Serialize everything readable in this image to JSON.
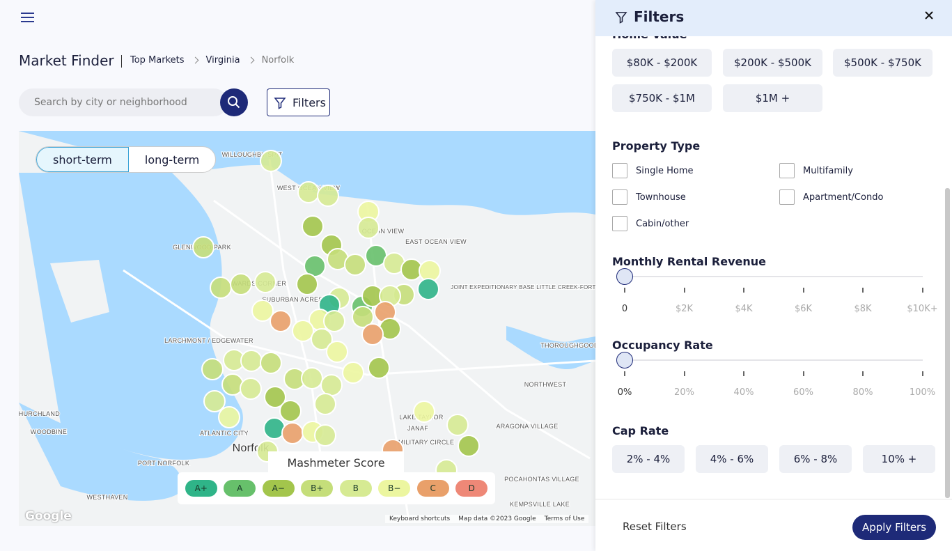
{
  "header": {
    "title": "Market Finder",
    "breadcrumb": [
      "Top Markets",
      "Virginia",
      "Norfolk"
    ]
  },
  "search": {
    "placeholder": "Search by city or neighborhood",
    "filters_button": "Filters"
  },
  "map": {
    "tabs": [
      "short-term",
      "long-term"
    ],
    "labels": [
      "WILLOUGHBY SPIT",
      "WEST OCEAN VIEW",
      "OCEAN VIEW",
      "EAST OCEAN VIEW",
      "GLENWOOD PARK",
      "WARDS CORNER",
      "SUBURBAN ACRES",
      "LARCHMONT / EDGEWATER",
      "JOINT EXPEDITIONARY BASE LITTLE CREEK-FORT STORY",
      "THOROUGHGOOD",
      "NORTHWEST",
      "LAKE TAYLOR",
      "JANAF",
      "MILITARY CIRCLE",
      "ARAGONA VILLAGE",
      "CHURCHLAND",
      "WOODBINE",
      "ATLANTIC CITY",
      "Norfolk",
      "PORT NORFOLK",
      "POCAHONTAS VILLAGE",
      "WESTHAVEN",
      "KEMPSVILLE LAKE"
    ],
    "legend": {
      "title": "Mashmeter Score",
      "grades": [
        "A+",
        "A",
        "A−",
        "B+",
        "B",
        "B−",
        "C",
        "D"
      ]
    },
    "logo": "Google",
    "attribution": [
      "Keyboard shortcuts",
      "Map data ©2023 Google",
      "Terms of Use"
    ]
  },
  "filters": {
    "title": "Filters",
    "home_value": {
      "title": "Home Value",
      "options": [
        "$80K - $200K",
        "$200K - $500K",
        "$500K - $750K",
        "$750K - $1M",
        "$1M +"
      ]
    },
    "property_type": {
      "title": "Property Type",
      "options": [
        "Single Home",
        "Multifamily",
        "Townhouse",
        "Apartment/Condo",
        "Cabin/other"
      ]
    },
    "monthly_rental_revenue": {
      "title": "Monthly Rental Revenue",
      "ticks": [
        "0",
        "$2K",
        "$4K",
        "$6K",
        "$8K",
        "$10K+"
      ]
    },
    "occupancy_rate": {
      "title": "Occupancy Rate",
      "ticks": [
        "0%",
        "20%",
        "40%",
        "60%",
        "80%",
        "100%"
      ]
    },
    "cap_rate": {
      "title": "Cap Rate",
      "options": [
        "2% - 4%",
        "4% - 6%",
        "6% - 8%",
        "10% +"
      ]
    },
    "reset": "Reset Filters",
    "apply": "Apply Filters"
  }
}
